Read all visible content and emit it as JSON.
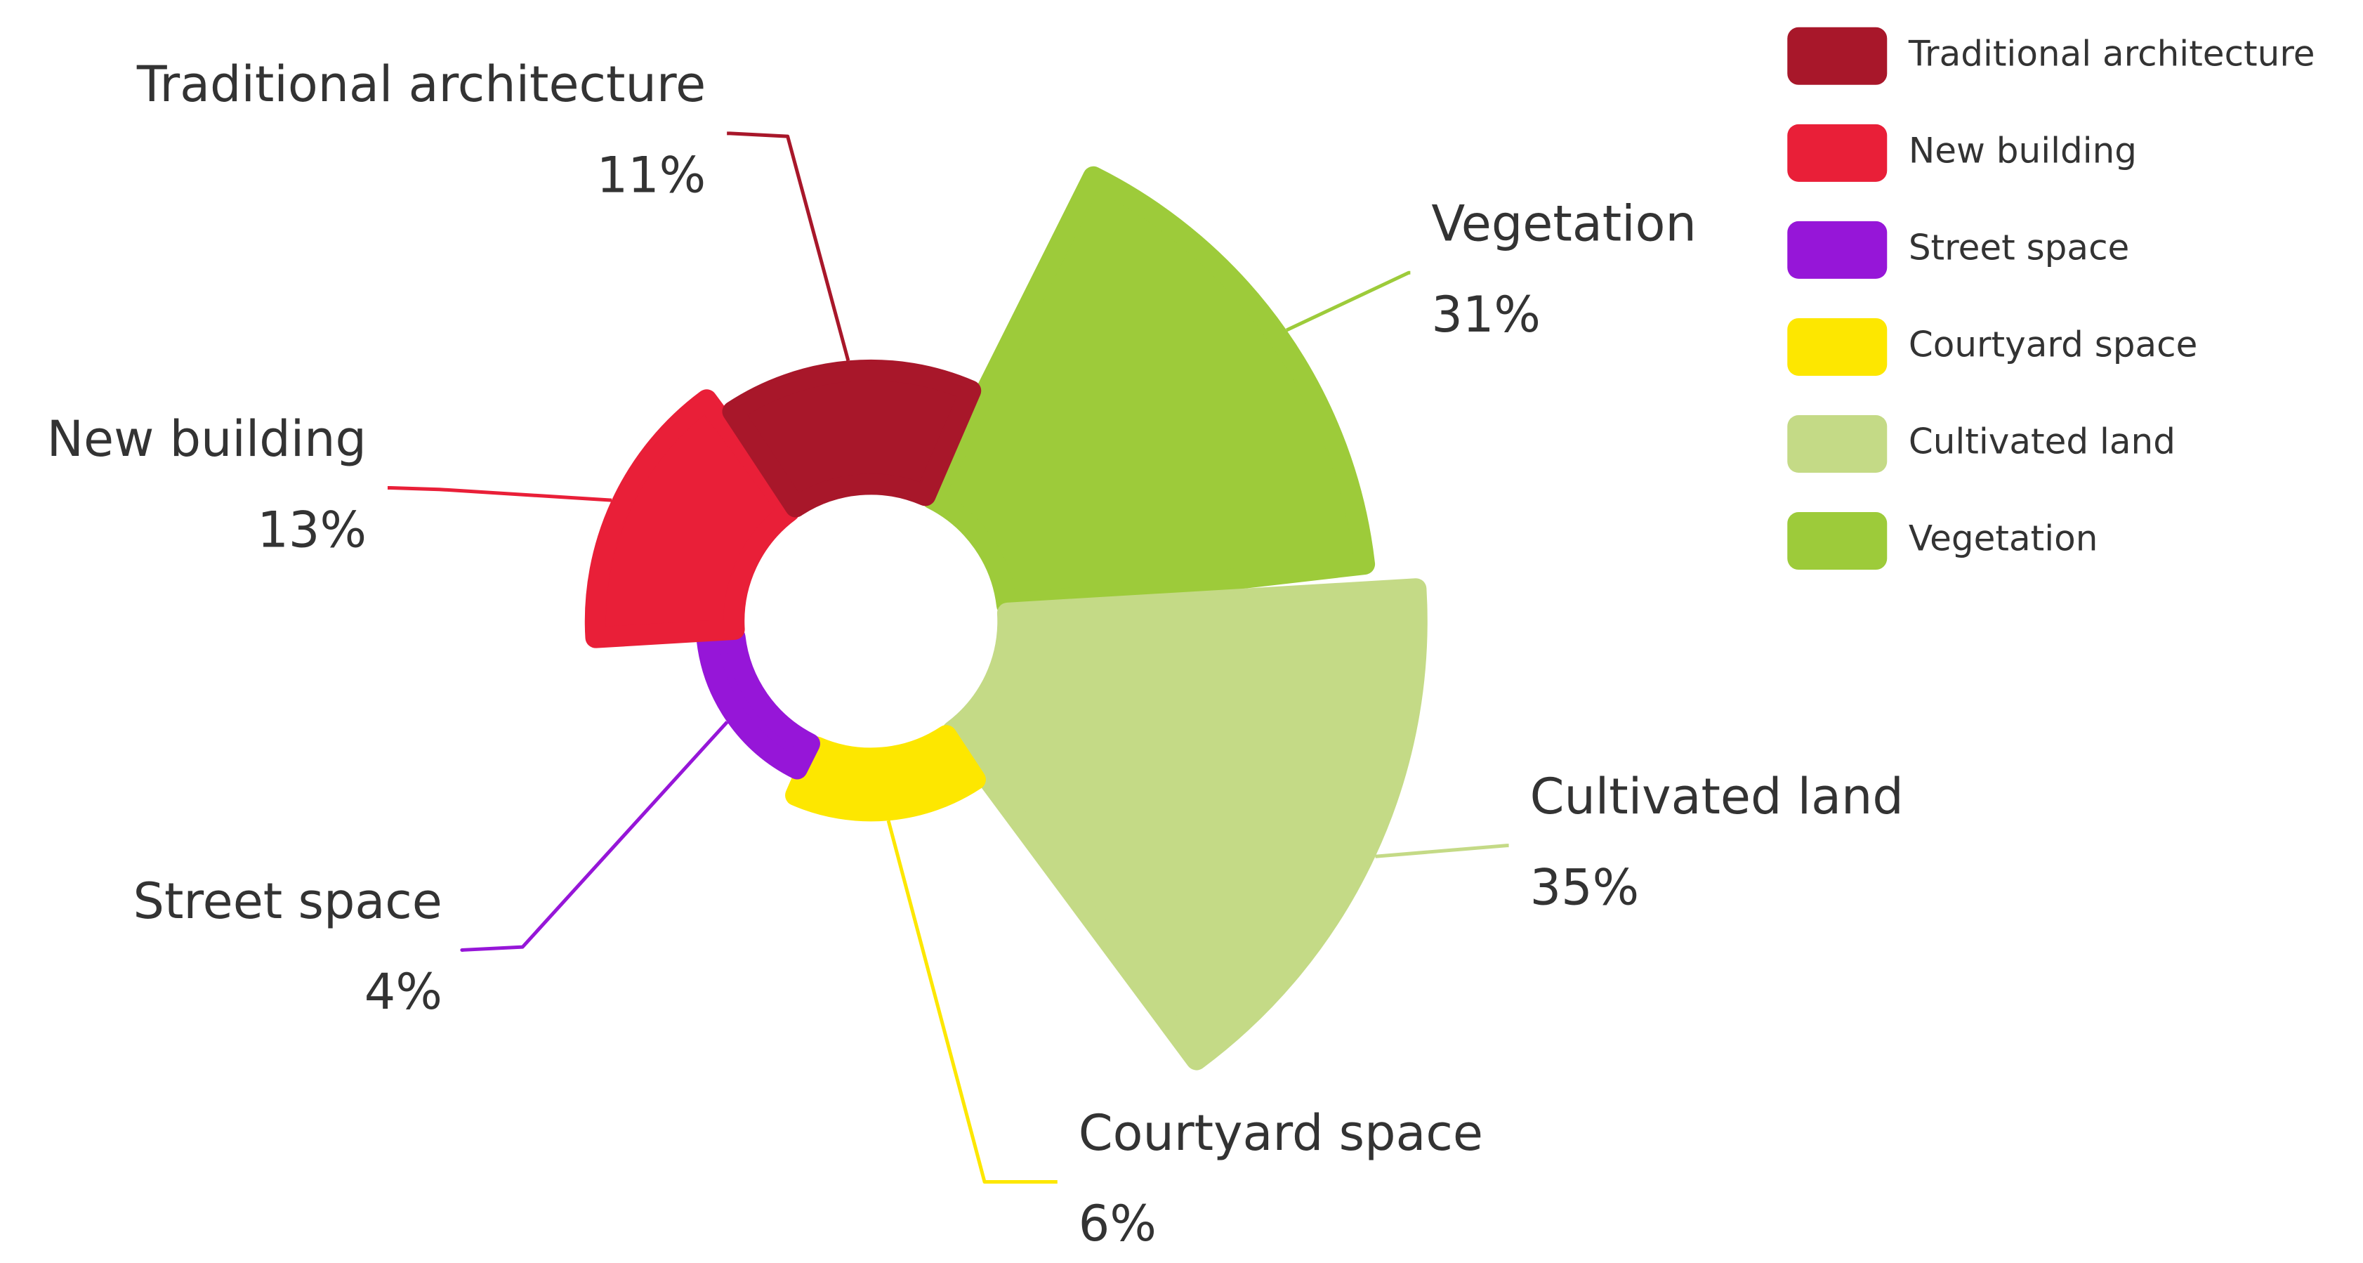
{
  "chart_data": {
    "type": "rose",
    "categories": [
      "Traditional architecture",
      "New building",
      "Street space",
      "Courtyard space",
      "Cultivated land",
      "Vegetation"
    ],
    "values": [
      11,
      13,
      4,
      6,
      35,
      31
    ],
    "value_labels": [
      "11%",
      "13%",
      "4%",
      "6%",
      "35%",
      "31%"
    ],
    "colors": [
      "#a8172a",
      "#e91f38",
      "#9616d8",
      "#fde700",
      "#c4da86",
      "#9dcb3a"
    ],
    "legend": "top-right"
  }
}
